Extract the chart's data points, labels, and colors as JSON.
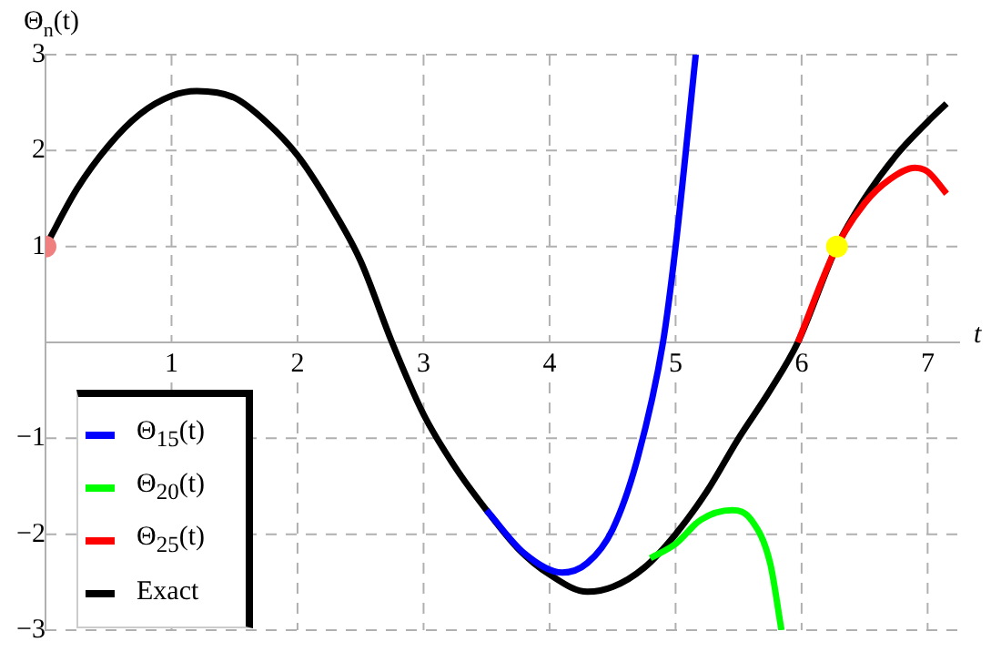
{
  "chart_data": {
    "type": "line",
    "xlabel": "t",
    "ylabel": "Θ$_{n}$(t)",
    "xlim": [
      0,
      7.25
    ],
    "ylim": [
      -3,
      3
    ],
    "xticks": [
      1,
      2,
      3,
      4,
      5,
      6,
      7
    ],
    "yticks": [
      -3,
      -2,
      -1,
      1,
      2,
      3
    ],
    "grid": true,
    "legend": "bottom left",
    "marker": "none",
    "line_style": "solid",
    "series": [
      {
        "name": "Θ$_{15}$(t)",
        "color": "#0000ff",
        "x": [
          3.5,
          3.8,
          4.1,
          4.3,
          4.5,
          4.7,
          4.9,
          5.0,
          5.16
        ],
        "values": [
          -1.75,
          -2.2,
          -2.4,
          -2.3,
          -1.95,
          -1.2,
          0,
          1.0,
          3
        ]
      },
      {
        "name": "Θ$_{20}$(t)",
        "color": "#00ff00",
        "x": [
          4.8,
          5.0,
          5.2,
          5.45,
          5.6,
          5.75,
          5.84
        ],
        "values": [
          -2.25,
          -2.1,
          -1.85,
          -1.75,
          -1.85,
          -2.3,
          -3
        ]
      },
      {
        "name": "Θ$_{25}$(t)",
        "color": "#ff0000",
        "x": [
          5.97,
          6.28,
          6.5,
          6.7,
          6.9,
          7.0,
          7.15
        ],
        "values": [
          0,
          1,
          1.45,
          1.7,
          1.82,
          1.78,
          1.55
        ]
      },
      {
        "name": "Exact",
        "color": "#000000",
        "x": [
          0,
          0.25,
          0.5,
          0.75,
          1,
          1.2,
          1.5,
          1.75,
          2,
          2.25,
          2.5,
          2.75,
          3,
          3.25,
          3.5,
          3.75,
          4,
          4.3,
          4.5,
          4.75,
          5,
          5.25,
          5.5,
          5.75,
          5.97,
          6.28,
          6.5,
          6.75,
          7,
          7.15
        ],
        "values": [
          1,
          1.6,
          2.05,
          2.38,
          2.57,
          2.62,
          2.55,
          2.3,
          1.95,
          1.45,
          0.85,
          0,
          -0.75,
          -1.3,
          -1.75,
          -2.15,
          -2.42,
          -2.6,
          -2.55,
          -2.35,
          -2.0,
          -1.55,
          -1.0,
          -0.5,
          0,
          1,
          1.5,
          1.95,
          2.3,
          2.49
        ]
      },
      {
        "type": "scatter",
        "color": "#f08080",
        "x": [
          0
        ],
        "values": [
          1
        ],
        "marker": "circle"
      },
      {
        "type": "scatter",
        "color": "#ffff00",
        "x": [
          6.28
        ],
        "values": [
          1
        ],
        "marker": "circle"
      }
    ]
  }
}
